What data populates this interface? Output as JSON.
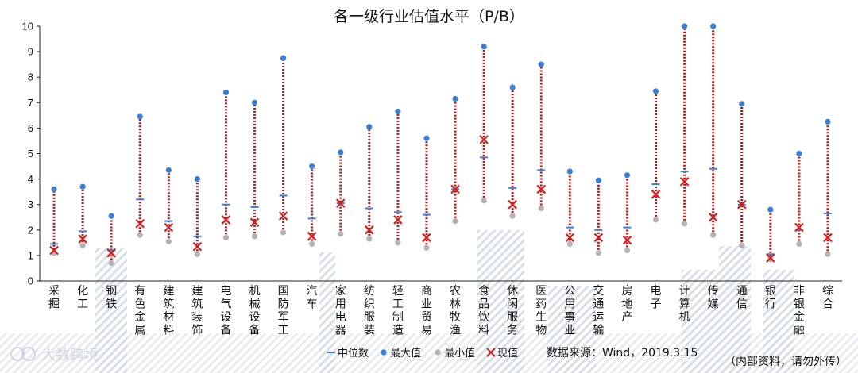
{
  "chart_data": {
    "type": "scatter",
    "title": "各一级行业估值水平（P/B）",
    "ylim": [
      0,
      10
    ],
    "yticks": [
      0,
      1,
      2,
      3,
      4,
      5,
      6,
      7,
      8,
      9,
      10
    ],
    "categories": [
      "采掘",
      "化工",
      "钢铁",
      "有色金属",
      "建筑材料",
      "建筑装饰",
      "电气设备",
      "机械设备",
      "国防军工",
      "汽车",
      "家用电器",
      "纺织服装",
      "轻工制造",
      "商业贸易",
      "农林牧渔",
      "食品饮料",
      "休闲服务",
      "医药生物",
      "公用事业",
      "交通运输",
      "房地产",
      "电子",
      "计算机",
      "传媒",
      "通信",
      "银行",
      "非银金融",
      "综合"
    ],
    "series": [
      {
        "name": "中位数",
        "values": [
          1.45,
          1.95,
          1.2,
          3.2,
          2.35,
          1.75,
          3.0,
          2.9,
          3.35,
          2.45,
          3.05,
          2.85,
          2.7,
          2.6,
          3.6,
          4.85,
          3.65,
          4.35,
          2.1,
          2.0,
          2.1,
          3.8,
          4.3,
          4.4,
          3.0,
          1.05,
          2.0,
          2.65
        ]
      },
      {
        "name": "最大值",
        "values": [
          3.6,
          3.7,
          2.55,
          6.45,
          4.35,
          4.0,
          7.4,
          7.0,
          8.75,
          4.5,
          5.05,
          6.05,
          6.65,
          5.6,
          7.15,
          9.2,
          7.6,
          8.5,
          4.3,
          3.95,
          4.15,
          7.45,
          10,
          10,
          6.95,
          2.8,
          5.0,
          6.25
        ]
      },
      {
        "name": "最小值",
        "values": [
          1.1,
          1.4,
          0.7,
          1.8,
          1.55,
          1.05,
          1.7,
          1.75,
          1.9,
          1.45,
          1.85,
          1.65,
          1.5,
          1.3,
          2.35,
          3.15,
          2.55,
          2.85,
          1.45,
          1.1,
          1.2,
          2.4,
          2.25,
          1.8,
          1.4,
          0.85,
          1.45,
          1.05
        ]
      },
      {
        "name": "现值",
        "values": [
          1.2,
          1.65,
          1.1,
          2.25,
          2.1,
          1.35,
          2.4,
          2.3,
          2.55,
          1.75,
          3.05,
          2.0,
          2.4,
          1.7,
          3.6,
          5.55,
          3.0,
          3.6,
          1.7,
          1.7,
          1.6,
          3.4,
          3.9,
          2.5,
          3.0,
          0.9,
          2.1,
          1.7
        ]
      }
    ],
    "legend_position": "bottom",
    "colors": {
      "median": "#3a7fd5",
      "max": "#3a7fd5",
      "min": "#b3b3b3",
      "current": "#d62020",
      "range": "#b01818"
    }
  },
  "footer": {
    "source": "数据来源：Wind，2019.3.15",
    "disclaimer": "（内部资料，请勿外传）",
    "watermark": "大数跨境"
  }
}
